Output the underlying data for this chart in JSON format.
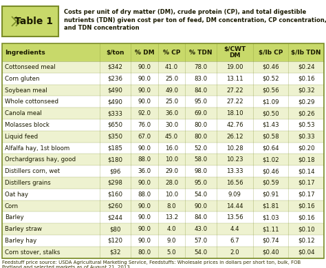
{
  "title_table": "Table 1",
  "title_desc": "Costs per unit of dry matter (DM), crude protein (CP), and total digestible\nnutrients (TDN) given cost per ton of feed, DM concentration, CP concentration,\nand TDN concentration",
  "columns": [
    "Ingredients",
    "$/ton",
    "% DM",
    "% CP",
    "% TDN",
    "$/CWT\nDM",
    "$/lb CP",
    "$/lb TDN"
  ],
  "rows": [
    [
      "Cottonseed meal",
      "$342",
      "90.0",
      "41.0",
      "78.0",
      "19.00",
      "$0.46",
      "$0.24"
    ],
    [
      "Corn gluten",
      "$236",
      "90.0",
      "25.0",
      "83.0",
      "13.11",
      "$0.52",
      "$0.16"
    ],
    [
      "Soybean meal",
      "$490",
      "90.0",
      "49.0",
      "84.0",
      "27.22",
      "$0.56",
      "$0.32"
    ],
    [
      "Whole cottonseed",
      "$490",
      "90.0",
      "25.0",
      "95.0",
      "27.22",
      "$1.09",
      "$0.29"
    ],
    [
      "Canola meal",
      "$333",
      "92.0",
      "36.0",
      "69.0",
      "18.10",
      "$0.50",
      "$0.26"
    ],
    [
      "Molasses block",
      "$650",
      "76.0",
      "30.0",
      "80.0",
      "42.76",
      "$1.43",
      "$0.53"
    ],
    [
      "Liquid feed",
      "$350",
      "67.0",
      "45.0",
      "80.0",
      "26.12",
      "$0.58",
      "$0.33"
    ],
    [
      "Alfalfa hay, 1st bloom",
      "$185",
      "90.0",
      "16.0",
      "52.0",
      "10.28",
      "$0.64",
      "$0.20"
    ],
    [
      "Orchardgrass hay, good",
      "$180",
      "88.0",
      "10.0",
      "58.0",
      "10.23",
      "$1.02",
      "$0.18"
    ],
    [
      "Distillers corn, wet",
      "$96",
      "36.0",
      "29.0",
      "98.0",
      "13.33",
      "$0.46",
      "$0.14"
    ],
    [
      "Distillers grains",
      "$298",
      "90.0",
      "28.0",
      "95.0",
      "16.56",
      "$0.59",
      "$0.17"
    ],
    [
      "Oat hay",
      "$160",
      "88.0",
      "10.0",
      "54.0",
      "9.09",
      "$0.91",
      "$0.17"
    ],
    [
      "Corn",
      "$260",
      "90.0",
      "8.0",
      "90.0",
      "14.44",
      "$1.81",
      "$0.16"
    ],
    [
      "Barley",
      "$244",
      "90.0",
      "13.2",
      "84.0",
      "13.56",
      "$1.03",
      "$0.16"
    ],
    [
      "Barley straw",
      "$80",
      "90.0",
      "4.0",
      "43.0",
      "4.4",
      "$1.11",
      "$0.10"
    ],
    [
      "Barley hay",
      "$120",
      "90.0",
      "9.0",
      "57.0",
      "6.7",
      "$0.74",
      "$0.12"
    ],
    [
      "Corn stover, stalks",
      "$32",
      "80.0",
      "5.0",
      "54.0",
      "2.0",
      "$0.40",
      "$0.04"
    ]
  ],
  "footnote": "Feedstuff price source: USDA Agricultural Marketing Service, Feedstuffs: Wholesale prices in dollars per short ton, bulk, FOB\nPortland and selected markets as of August 21, 2013.",
  "header_bg": "#c8d96a",
  "row_bg_odd": "#eef2d0",
  "row_bg_even": "#ffffff",
  "table_border": "#7a8c28",
  "title_box_bg": "#c8d96a",
  "title_box_border": "#7a8c28",
  "chevron_color": "#7a8c28",
  "text_dark": "#1a1a00"
}
